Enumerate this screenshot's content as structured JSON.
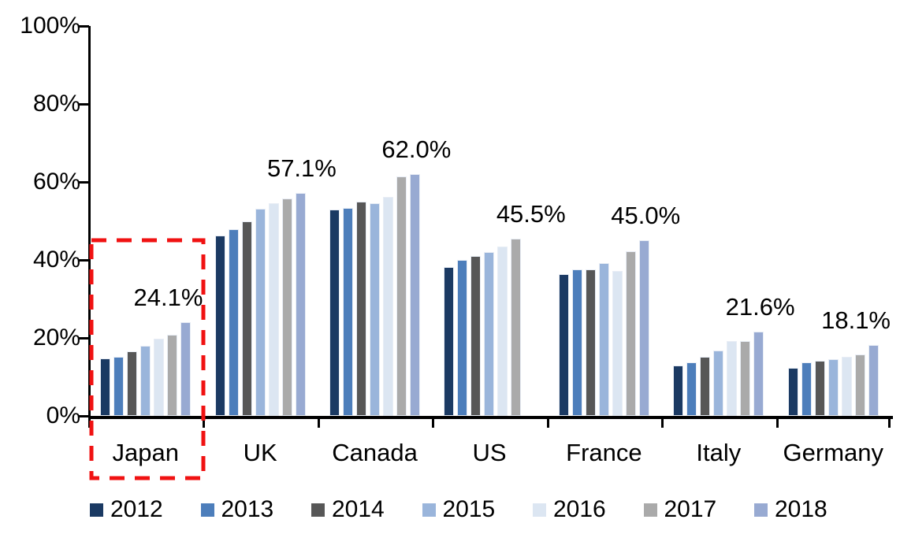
{
  "chart_data": {
    "type": "bar",
    "title": "",
    "xlabel": "",
    "ylabel": "",
    "categories": [
      "Japan",
      "UK",
      "Canada",
      "US",
      "France",
      "Italy",
      "Germany"
    ],
    "series": [
      {
        "name": "2012",
        "color": "#1B3A63",
        "values": [
          14.8,
          46.2,
          52.9,
          38.1,
          36.4,
          13.0,
          12.4
        ]
      },
      {
        "name": "2013",
        "color": "#4D7EBB",
        "values": [
          15.1,
          47.8,
          53.4,
          40.0,
          37.6,
          13.8,
          13.7
        ]
      },
      {
        "name": "2014",
        "color": "#575757",
        "values": [
          16.5,
          49.9,
          54.9,
          41.0,
          37.5,
          15.2,
          14.1
        ]
      },
      {
        "name": "2015",
        "color": "#9AB5DB",
        "values": [
          17.9,
          53.2,
          54.6,
          42.0,
          39.2,
          16.8,
          14.5
        ]
      },
      {
        "name": "2016",
        "color": "#DCE6F2",
        "values": [
          19.9,
          54.5,
          56.1,
          43.5,
          37.2,
          19.1,
          15.2
        ]
      },
      {
        "name": "2017",
        "color": "#AAAAAA",
        "values": [
          20.9,
          55.7,
          61.5,
          45.5,
          42.2,
          19.2,
          15.7
        ]
      },
      {
        "name": "2018",
        "color": "#98AAD2",
        "values": [
          24.1,
          57.1,
          62.0,
          null,
          45.0,
          21.6,
          18.1
        ]
      }
    ],
    "value_labels": [
      "24.1%",
      "57.1%",
      "62.0%",
      "45.5%",
      "45.0%",
      "21.6%",
      "18.1%"
    ],
    "y_axis": {
      "min": 0,
      "max": 100,
      "ticks": [
        "0%",
        "20%",
        "40%",
        "60%",
        "80%",
        "100%"
      ]
    },
    "grid": false,
    "legend_position": "bottom",
    "legend_entries": [
      "2012",
      "2013",
      "2014",
      "2015",
      "2016",
      "2017",
      "2018"
    ],
    "annotations": [
      {
        "type": "dashed-box",
        "target": "Japan",
        "color": "#F01212"
      }
    ]
  }
}
